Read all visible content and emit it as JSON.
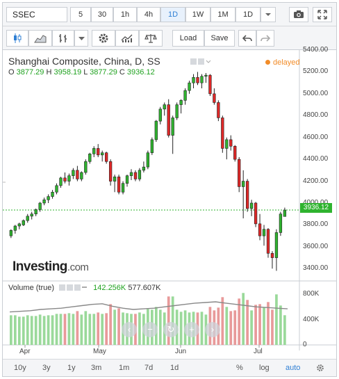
{
  "toolbar": {
    "symbol": "SSEC",
    "intervals": [
      "5",
      "30",
      "1h",
      "4h",
      "1D",
      "1W",
      "1M",
      "1D"
    ],
    "active_interval": "1D",
    "load_label": "Load",
    "save_label": "Save"
  },
  "legend": {
    "title": "Shanghai Composite, China, D, SS",
    "o_label": "O",
    "o": "3877.29",
    "h_label": "H",
    "h": "3958.19",
    "l_label": "L",
    "l": "3877.29",
    "c_label": "C",
    "c": "3936.12",
    "status": "delayed"
  },
  "price_axis": [
    "5400.00",
    "5200.00",
    "5000.00",
    "4800.00",
    "4600.00",
    "4400.00",
    "4200.00",
    "4000.00",
    "3936.12",
    "3800.00",
    "3600.00",
    "3400.00"
  ],
  "volume_legend": {
    "label": "Volume (true)",
    "v1": "142.256K",
    "v2": "577.607K"
  },
  "volume_axis": [
    "800K",
    "400K",
    "0"
  ],
  "time_axis": [
    "Apr",
    "May",
    "Jun",
    "Jul"
  ],
  "branding": {
    "logo": "Investing",
    "logo_suffix": ".com"
  },
  "bottom_bar": {
    "ranges": [
      "10y",
      "3y",
      "1y",
      "3m",
      "1m",
      "7d",
      "1d"
    ],
    "percent": "%",
    "log": "log",
    "auto": "auto"
  },
  "colors": {
    "up": "#2fb32f",
    "down": "#e02828",
    "vol_up": "#9ad99a",
    "vol_down": "#e89a9a",
    "accent": "#2f7fd4",
    "delayed": "#f28c28"
  },
  "chart_data": {
    "type": "candlestick",
    "title": "Shanghai Composite, China, D, SS",
    "ylim": [
      3300,
      5400
    ],
    "x_months": [
      "Apr",
      "May",
      "Jun",
      "Jul"
    ],
    "candles": [
      [
        3700,
        3760,
        3680,
        3750
      ],
      [
        3750,
        3800,
        3720,
        3790
      ],
      [
        3790,
        3820,
        3760,
        3810
      ],
      [
        3800,
        3850,
        3790,
        3840
      ],
      [
        3840,
        3900,
        3820,
        3880
      ],
      [
        3880,
        3920,
        3850,
        3900
      ],
      [
        3900,
        3950,
        3880,
        3940
      ],
      [
        3940,
        4010,
        3920,
        4000
      ],
      [
        4000,
        4050,
        3980,
        4030
      ],
      [
        4030,
        4080,
        4000,
        4060
      ],
      [
        4060,
        4120,
        4040,
        4100
      ],
      [
        4100,
        4180,
        4080,
        4160
      ],
      [
        4160,
        4240,
        4140,
        4230
      ],
      [
        4230,
        4280,
        4180,
        4200
      ],
      [
        4200,
        4270,
        4160,
        4250
      ],
      [
        4250,
        4320,
        4220,
        4300
      ],
      [
        4300,
        4340,
        4200,
        4220
      ],
      [
        4220,
        4290,
        4200,
        4280
      ],
      [
        4280,
        4400,
        4260,
        4380
      ],
      [
        4380,
        4460,
        4360,
        4450
      ],
      [
        4450,
        4520,
        4420,
        4500
      ],
      [
        4500,
        4540,
        4420,
        4440
      ],
      [
        4440,
        4480,
        4380,
        4460
      ],
      [
        4460,
        4470,
        4360,
        4380
      ],
      [
        4380,
        4400,
        4160,
        4200
      ],
      [
        4200,
        4260,
        4100,
        4240
      ],
      [
        4240,
        4260,
        4080,
        4100
      ],
      [
        4100,
        4200,
        4080,
        4180
      ],
      [
        4180,
        4260,
        4150,
        4250
      ],
      [
        4250,
        4310,
        4210,
        4280
      ],
      [
        4280,
        4300,
        4200,
        4220
      ],
      [
        4220,
        4320,
        4200,
        4300
      ],
      [
        4300,
        4380,
        4280,
        4330
      ],
      [
        4330,
        4480,
        4310,
        4460
      ],
      [
        4460,
        4600,
        4440,
        4580
      ],
      [
        4580,
        4760,
        4560,
        4750
      ],
      [
        4750,
        4880,
        4720,
        4860
      ],
      [
        4860,
        4920,
        4800,
        4900
      ],
      [
        4900,
        4950,
        4600,
        4620
      ],
      [
        4620,
        4800,
        4450,
        4780
      ],
      [
        4780,
        4920,
        4760,
        4900
      ],
      [
        4900,
        4950,
        4820,
        4940
      ],
      [
        4940,
        5050,
        4900,
        5030
      ],
      [
        5030,
        5120,
        5000,
        5100
      ],
      [
        5100,
        5180,
        5050,
        5150
      ],
      [
        5150,
        5200,
        5080,
        5100
      ],
      [
        5100,
        5180,
        5050,
        5160
      ],
      [
        5160,
        5190,
        5100,
        5170
      ],
      [
        5170,
        5180,
        4980,
        5000
      ],
      [
        5000,
        5050,
        4900,
        4920
      ],
      [
        4920,
        4940,
        4750,
        4780
      ],
      [
        4780,
        4800,
        4460,
        4500
      ],
      [
        4500,
        4600,
        4400,
        4580
      ],
      [
        4580,
        4620,
        4480,
        4520
      ],
      [
        4520,
        4530,
        4380,
        4400
      ],
      [
        4400,
        4420,
        4100,
        4150
      ],
      [
        4150,
        4300,
        3860,
        4200
      ],
      [
        4200,
        4220,
        3920,
        3950
      ],
      [
        3950,
        4030,
        3880,
        4000
      ],
      [
        4000,
        4010,
        3780,
        3810
      ],
      [
        3810,
        3900,
        3660,
        3700
      ],
      [
        3700,
        3800,
        3610,
        3760
      ],
      [
        3760,
        3770,
        3500,
        3540
      ],
      [
        3540,
        3560,
        3400,
        3500
      ],
      [
        3500,
        3760,
        3380,
        3730
      ],
      [
        3730,
        3920,
        3700,
        3900
      ],
      [
        3877.29,
        3958.19,
        3877.29,
        3936.12
      ]
    ],
    "volume_ma_k": [
      520,
      530,
      540,
      560,
      570,
      580,
      600,
      620,
      640,
      650,
      610,
      580,
      560,
      570,
      580,
      600,
      620,
      640,
      660,
      670,
      680,
      660,
      640,
      620,
      600,
      590,
      580,
      570
    ]
  }
}
